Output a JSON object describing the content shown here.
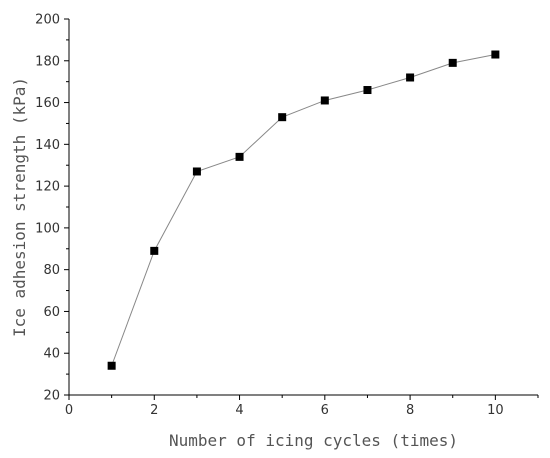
{
  "chart_data": {
    "type": "line",
    "title": "",
    "xlabel": "Number of icing cycles (times)",
    "ylabel": "Ice adhesion strength (kPa)",
    "xlim": [
      0,
      11
    ],
    "ylim": [
      20,
      200
    ],
    "xticks": [
      0,
      2,
      4,
      6,
      8,
      10
    ],
    "yticks": [
      20,
      40,
      60,
      80,
      100,
      120,
      140,
      160,
      180,
      200
    ],
    "marker": "square",
    "line_color": "#888888",
    "marker_color": "#000000",
    "grid": false,
    "legend": "none",
    "series": [
      {
        "x": [
          1,
          2,
          3,
          4,
          5,
          6,
          7,
          8,
          9,
          10
        ],
        "y": [
          34,
          89,
          127,
          134,
          153,
          161,
          166,
          172,
          179,
          183
        ]
      }
    ]
  }
}
